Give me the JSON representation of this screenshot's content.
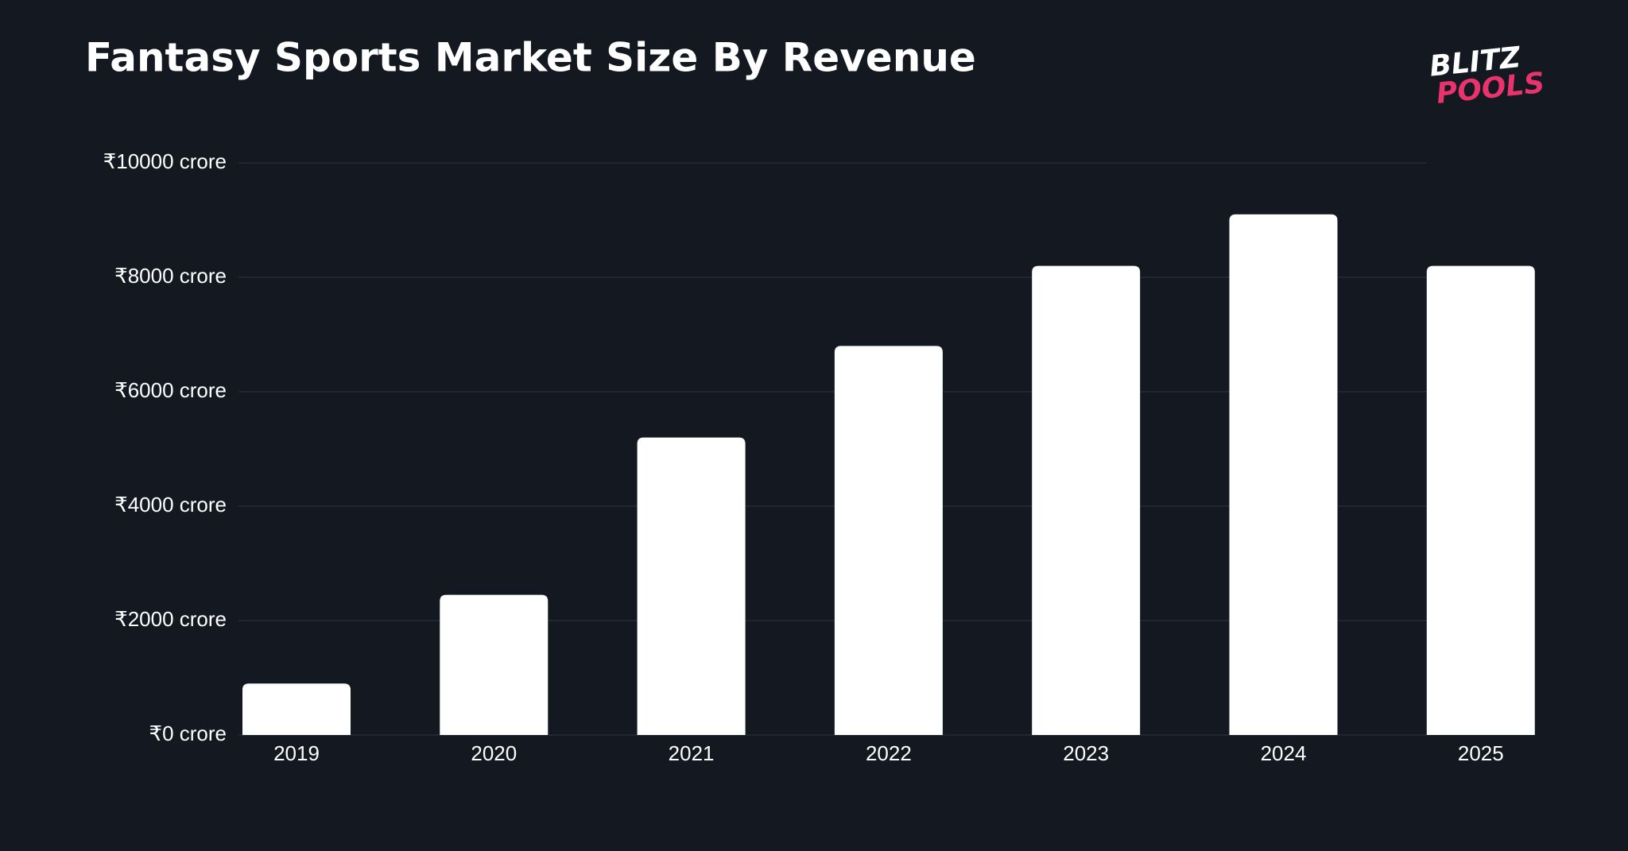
{
  "chart_data": {
    "type": "bar",
    "title": "Fantasy Sports Market Size By Revenue",
    "categories": [
      "2019",
      "2020",
      "2021",
      "2022",
      "2023",
      "2024",
      "2025"
    ],
    "values": [
      900,
      2450,
      5200,
      6800,
      8200,
      9100,
      8200
    ],
    "color": "#ffffff",
    "ylim": [
      0,
      10000
    ],
    "yticks": [
      {
        "value": 0,
        "label": "₹0 crore"
      },
      {
        "value": 2000,
        "label": "₹2000 crore"
      },
      {
        "value": 4000,
        "label": "₹4000 crore"
      },
      {
        "value": 6000,
        "label": "₹6000 crore"
      },
      {
        "value": 8000,
        "label": "₹8000 crore"
      },
      {
        "value": 10000,
        "label": "₹10000 crore"
      }
    ],
    "grid": true
  },
  "logo": {
    "line1": "BLITZ",
    "line2": "POOLS"
  }
}
